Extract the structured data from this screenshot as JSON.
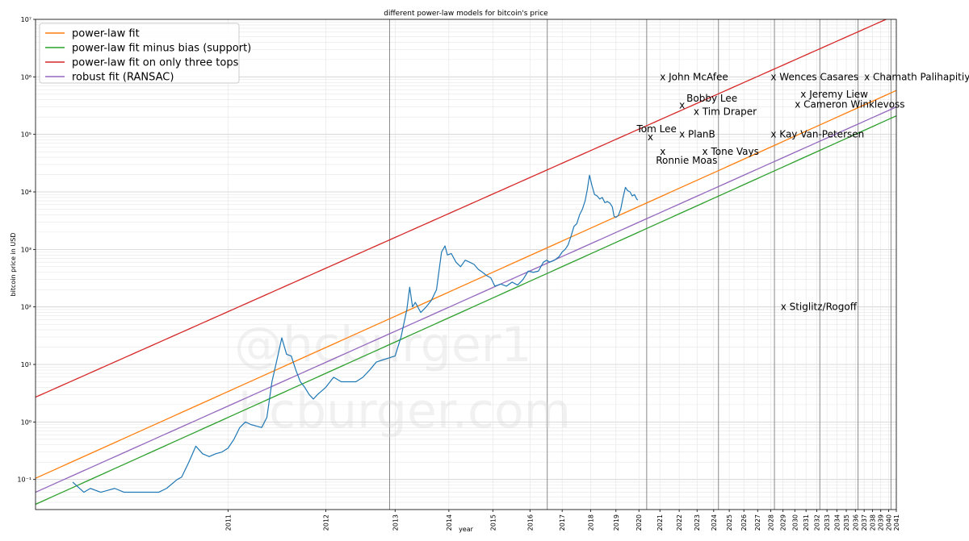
{
  "chart_data": {
    "type": "line",
    "title": "different power-law models for bitcoin's price",
    "xlabel": "year",
    "ylabel": "bitcoin price in USD",
    "x_scale": "log-time",
    "y_scale": "log",
    "xlim": [
      2009.9,
      2041
    ],
    "ylim": [
      0.03,
      10000000
    ],
    "grid": true,
    "legend_position": "top-left",
    "x_ticks": [
      2011,
      2012,
      2013,
      2014,
      2015,
      2016,
      2017,
      2018,
      2019,
      2020,
      2021,
      2022,
      2023,
      2024,
      2025,
      2026,
      2027,
      2028,
      2029,
      2030,
      2031,
      2032,
      2033,
      2034,
      2035,
      2036,
      2037,
      2038,
      2039,
      2040,
      2041
    ],
    "y_ticks": [
      {
        "value": 0.1,
        "label": "10⁻¹"
      },
      {
        "value": 1,
        "label": "10⁰"
      },
      {
        "value": 10,
        "label": "10¹"
      },
      {
        "value": 100,
        "label": "10²"
      },
      {
        "value": 1000,
        "label": "10³"
      },
      {
        "value": 10000,
        "label": "10⁴"
      },
      {
        "value": 100000,
        "label": "10⁵"
      },
      {
        "value": 1000000,
        "label": "10⁶"
      },
      {
        "value": 10000000,
        "label": "10⁷"
      }
    ],
    "halving_lines": [
      2012.91,
      2016.52,
      2020.36,
      2024.3,
      2028.3,
      2032.3,
      2036.3,
      2040.3
    ],
    "series": [
      {
        "name": "power-law fit",
        "color": "#ff7f0e",
        "kind": "line",
        "x": [
          2009.9,
          2041
        ],
        "y": [
          0.105,
          580000
        ]
      },
      {
        "name": "power-law fit minus bias (support)",
        "color": "#2ca02c",
        "kind": "line",
        "x": [
          2009.9,
          2041
        ],
        "y": [
          0.037,
          210000
        ]
      },
      {
        "name": "power-law fit on only three tops",
        "color": "#d62728",
        "kind": "line",
        "x": [
          2009.9,
          2041
        ],
        "y": [
          2.7,
          12000000
        ]
      },
      {
        "name": "robust fit (RANSAC)",
        "color": "#9467bd",
        "kind": "line",
        "x": [
          2009.9,
          2041
        ],
        "y": [
          0.06,
          300000
        ]
      },
      {
        "name": "",
        "color": "#1f77b4",
        "kind": "price",
        "x": [
          2010.05,
          2010.1,
          2010.13,
          2010.18,
          2010.25,
          2010.3,
          2010.38,
          2010.45,
          2010.5,
          2010.55,
          2010.62,
          2010.65,
          2010.7,
          2010.75,
          2010.8,
          2010.85,
          2010.9,
          2010.95,
          2011.0,
          2011.05,
          2011.1,
          2011.15,
          2011.2,
          2011.25,
          2011.3,
          2011.35,
          2011.4,
          2011.45,
          2011.5,
          2011.55,
          2011.6,
          2011.65,
          2011.7,
          2011.75,
          2011.8,
          2011.85,
          2011.9,
          2012.0,
          2012.1,
          2012.2,
          2012.3,
          2012.4,
          2012.5,
          2012.6,
          2012.7,
          2012.8,
          2012.9,
          2013.0,
          2013.1,
          2013.2,
          2013.25,
          2013.3,
          2013.35,
          2013.45,
          2013.55,
          2013.65,
          2013.75,
          2013.85,
          2013.92,
          2013.97,
          2014.05,
          2014.15,
          2014.25,
          2014.35,
          2014.45,
          2014.55,
          2014.65,
          2014.75,
          2014.85,
          2014.95,
          2015.05,
          2015.2,
          2015.35,
          2015.5,
          2015.65,
          2015.8,
          2015.95,
          2016.1,
          2016.25,
          2016.4,
          2016.5,
          2016.6,
          2016.75,
          2016.9,
          2017.0,
          2017.1,
          2017.2,
          2017.3,
          2017.4,
          2017.5,
          2017.6,
          2017.7,
          2017.8,
          2017.88,
          2017.96,
          2018.05,
          2018.15,
          2018.25,
          2018.35,
          2018.45,
          2018.55,
          2018.65,
          2018.75,
          2018.85,
          2018.92,
          2019.0,
          2019.1,
          2019.2,
          2019.3,
          2019.4,
          2019.5,
          2019.6,
          2019.7,
          2019.8,
          2019.9,
          2019.95
        ],
        "y": [
          0.09,
          0.06,
          0.07,
          0.06,
          0.07,
          0.06,
          0.06,
          0.06,
          0.06,
          0.07,
          0.1,
          0.11,
          0.2,
          0.38,
          0.28,
          0.25,
          0.28,
          0.3,
          0.35,
          0.5,
          0.8,
          1.0,
          0.9,
          0.85,
          0.8,
          1.2,
          5,
          12,
          29,
          15,
          14,
          8,
          5,
          4,
          3,
          2.5,
          3,
          4,
          6,
          5,
          5,
          5,
          6,
          8,
          11,
          12,
          13,
          14,
          30,
          90,
          220,
          100,
          120,
          80,
          100,
          130,
          200,
          900,
          1150,
          800,
          850,
          600,
          500,
          650,
          600,
          550,
          450,
          400,
          350,
          320,
          230,
          250,
          230,
          270,
          240,
          300,
          420,
          400,
          420,
          600,
          650,
          600,
          650,
          750,
          900,
          1000,
          1200,
          1700,
          2500,
          2800,
          4000,
          5000,
          7000,
          11000,
          19500,
          13000,
          9000,
          8500,
          7500,
          8000,
          6500,
          6800,
          6400,
          5500,
          3800,
          3600,
          3900,
          5000,
          8000,
          12000,
          10500,
          10000,
          8500,
          9000,
          7500,
          7200
        ]
      }
    ],
    "annotations": [
      {
        "label": "x John McAfee",
        "x": 2021.0,
        "y": 1000000
      },
      {
        "label": "x Wences Casares",
        "x": 2028.0,
        "y": 1000000
      },
      {
        "label": "x Chamath Palihapitiya",
        "x": 2037.0,
        "y": 1000000
      },
      {
        "label": "Bobby Lee",
        "x": 2022.4,
        "y": 420000
      },
      {
        "label": "x",
        "x": 2022.0,
        "y": 320000
      },
      {
        "label": "x Tim Draper",
        "x": 2022.8,
        "y": 250000
      },
      {
        "label": "x Jeremy Liew",
        "x": 2030.5,
        "y": 500000
      },
      {
        "label": "x Cameron Winklevoss",
        "x": 2030.0,
        "y": 330000
      },
      {
        "label": "Tom Lee",
        "x": 2019.9,
        "y": 125000
      },
      {
        "label": "x",
        "x": 2020.4,
        "y": 90000
      },
      {
        "label": "x PlanB",
        "x": 2022.0,
        "y": 100000
      },
      {
        "label": "x Kay Van-Petersen",
        "x": 2028.0,
        "y": 100000
      },
      {
        "label": "x",
        "x": 2021.0,
        "y": 50000
      },
      {
        "label": "x Tone Vays",
        "x": 2023.3,
        "y": 50000
      },
      {
        "label": "Ronnie Moas",
        "x": 2020.8,
        "y": 35000
      },
      {
        "label": "x Stiglitz/Rogoff",
        "x": 2028.8,
        "y": 100
      }
    ]
  },
  "watermark": {
    "line1": "@hcburger1",
    "line2": "hcburger.com"
  }
}
